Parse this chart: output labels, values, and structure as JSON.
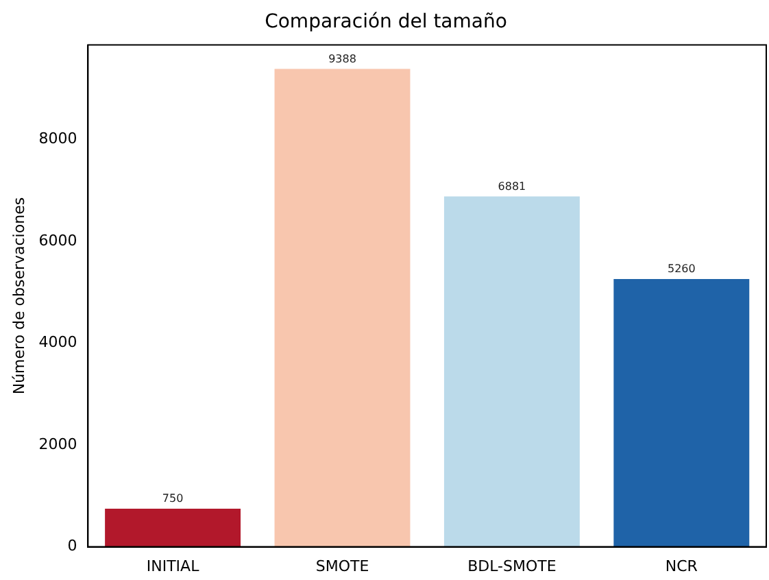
{
  "chart_data": {
    "type": "bar",
    "title": "Comparación del tamaño",
    "ylabel": "Número de observaciones",
    "categories": [
      "INITIAL",
      "SMOTE",
      "BDL-SMOTE",
      "NCR"
    ],
    "values": [
      750,
      9388,
      6881,
      5260
    ],
    "colors": [
      "#b2182b",
      "#f8c6ae",
      "#bbdaea",
      "#1f63a8"
    ],
    "ylim": [
      0,
      9857
    ],
    "yticks": [
      0,
      2000,
      4000,
      6000,
      8000
    ],
    "grid": false,
    "legend": false,
    "data_labels": true
  }
}
